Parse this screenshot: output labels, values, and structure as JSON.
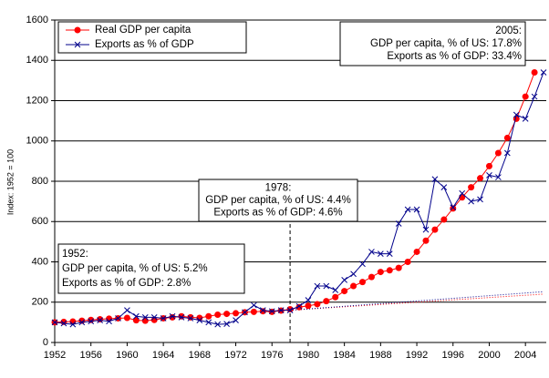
{
  "chart_data": {
    "type": "line",
    "y_label": "Index: 1952 = 100",
    "x": [
      1952,
      1953,
      1954,
      1955,
      1956,
      1957,
      1958,
      1959,
      1960,
      1961,
      1962,
      1963,
      1964,
      1965,
      1966,
      1967,
      1968,
      1969,
      1970,
      1971,
      1972,
      1973,
      1974,
      1975,
      1976,
      1977,
      1978,
      1979,
      1980,
      1981,
      1982,
      1983,
      1984,
      1985,
      1986,
      1987,
      1988,
      1989,
      1990,
      1991,
      1992,
      1993,
      1994,
      1995,
      1996,
      1997,
      1998,
      1999,
      2000,
      2001,
      2002,
      2003,
      2004,
      2005,
      2006
    ],
    "series": [
      {
        "name": "Real GDP per capita",
        "color": "#ff0000",
        "marker": "circle",
        "values": [
          100,
          102,
          104,
          108,
          112,
          115,
          118,
          120,
          122,
          110,
          108,
          112,
          120,
          125,
          130,
          125,
          122,
          130,
          138,
          142,
          145,
          150,
          152,
          155,
          152,
          158,
          165,
          175,
          182,
          190,
          205,
          225,
          255,
          280,
          300,
          325,
          350,
          358,
          370,
          400,
          450,
          505,
          560,
          610,
          665,
          720,
          770,
          815,
          875,
          940,
          1015,
          1110,
          1220,
          1340,
          null
        ]
      },
      {
        "name": "Exports as % of GDP",
        "color": "#00008b",
        "marker": "x",
        "values": [
          100,
          95,
          90,
          100,
          105,
          110,
          105,
          120,
          160,
          130,
          125,
          125,
          120,
          130,
          125,
          120,
          110,
          100,
          90,
          92,
          110,
          150,
          185,
          160,
          155,
          160,
          160,
          180,
          210,
          280,
          280,
          260,
          310,
          340,
          390,
          450,
          440,
          440,
          590,
          660,
          660,
          560,
          810,
          770,
          670,
          740,
          700,
          710,
          830,
          820,
          940,
          1130,
          1110,
          1220,
          1340
        ]
      }
    ],
    "trends": [
      {
        "color": "#ff0000",
        "x": [
          1978,
          2006
        ],
        "values": [
          160,
          240
        ]
      },
      {
        "color": "#00008b",
        "x": [
          1978,
          2006
        ],
        "values": [
          160,
          252
        ]
      }
    ],
    "marker_line": {
      "x": 1978
    },
    "annotations": [
      {
        "x": 1952,
        "lines": [
          "1952:",
          "GDP per capita, % of US: 5.2%",
          "Exports as % of GDP: 2.8%"
        ]
      },
      {
        "x": 1978,
        "lines": [
          "1978:",
          "GDP per capita, % of US: 4.4%",
          "Exports as % of GDP: 4.6%"
        ]
      },
      {
        "x": 2005,
        "lines": [
          "2005:",
          "GDP per capita, % of US: 17.8%",
          "Exports as % of GDP: 33.4%"
        ]
      }
    ],
    "xlim": [
      1952,
      2006.3
    ],
    "ylim": [
      0,
      1600
    ],
    "xticks": [
      1952,
      1956,
      1960,
      1964,
      1968,
      1972,
      1976,
      1980,
      1984,
      1988,
      1992,
      1996,
      2000,
      2004
    ],
    "yticks": [
      0,
      200,
      400,
      600,
      800,
      1000,
      1200,
      1400,
      1600
    ],
    "grid": true,
    "legend": "top-left"
  }
}
